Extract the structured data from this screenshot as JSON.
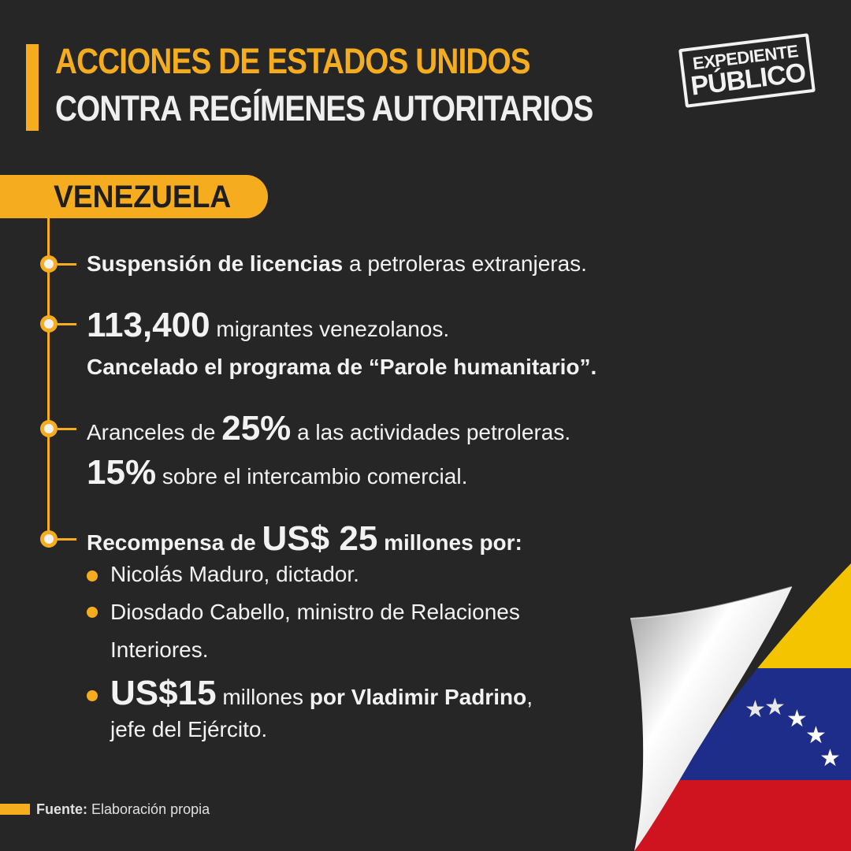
{
  "header": {
    "title_line1": "ACCIONES DE ESTADOS UNIDOS",
    "title_line2": "CONTRA REGÍMENES AUTORITARIOS"
  },
  "brand": {
    "stamp_line1": "EXPEDIENTE",
    "stamp_line2": "PÚBLICO"
  },
  "country": "VENEZUELA",
  "items": {
    "licencias": {
      "bold": "Suspensión de licencias",
      "rest": "a petroleras extranjeras."
    },
    "migrantes": {
      "number": "113,400",
      "rest": "migrantes venezolanos.",
      "line2": "Cancelado el programa de “Parole humanitario”."
    },
    "aranceles": {
      "prefix": "Aranceles de",
      "pct": "25%",
      "rest": "a las actividades petroleras.",
      "pct2": "15%",
      "rest2": "sobre el intercambio comercial."
    },
    "recompensa": {
      "prefix": "Recompensa de",
      "amount": "US$ 25",
      "suffix": "millones por:",
      "bullets": {
        "maduro": "Nicolás Maduro, dictador.",
        "cabello_1": "Diosdado Cabello, ministro de Relaciones",
        "cabello_2": "Interiores.",
        "padrino_amount": "US$15",
        "padrino_mid": "millones",
        "padrino_bold": "por Vladimir Padrino",
        "padrino_comma": ",",
        "padrino_2": "jefe del Ejército."
      }
    }
  },
  "footer": {
    "source_label": "Fuente:",
    "source_text": "Elaboración propia"
  },
  "colors": {
    "background": "#262626",
    "accent": "#f5ad1f",
    "flag_yellow": "#f5c400",
    "flag_blue": "#1f2d8a",
    "flag_red": "#d0141f"
  }
}
